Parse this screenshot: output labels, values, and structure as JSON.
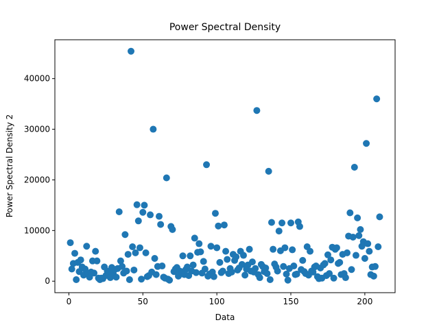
{
  "chart_data": {
    "type": "scatter",
    "title": "Power Spectral Density",
    "xlabel": "Data",
    "ylabel": "Power Spectral Density 2",
    "color": "#1f77b4",
    "x": [
      1,
      2,
      3,
      4,
      5,
      6,
      7,
      8,
      9,
      10,
      11,
      12,
      13,
      14,
      15,
      16,
      17,
      18,
      19,
      20,
      21,
      22,
      23,
      24,
      25,
      26,
      27,
      28,
      29,
      30,
      31,
      32,
      33,
      34,
      35,
      36,
      37,
      38,
      39,
      40,
      41,
      42,
      43,
      44,
      45,
      46,
      47,
      48,
      49,
      50,
      51,
      52,
      53,
      54,
      55,
      56,
      57,
      58,
      59,
      60,
      61,
      62,
      63,
      64,
      65,
      66,
      67,
      68,
      69,
      70,
      71,
      72,
      73,
      74,
      75,
      76,
      77,
      78,
      79,
      80,
      81,
      82,
      83,
      84,
      85,
      86,
      87,
      88,
      89,
      90,
      91,
      92,
      93,
      94,
      95,
      96,
      97,
      98,
      99,
      100,
      101,
      102,
      103,
      104,
      105,
      106,
      107,
      108,
      109,
      110,
      111,
      112,
      113,
      114,
      115,
      116,
      117,
      118,
      119,
      120,
      121,
      122,
      123,
      124,
      125,
      126,
      127,
      128,
      129,
      130,
      131,
      132,
      133,
      134,
      135,
      136,
      137,
      138,
      139,
      140,
      141,
      142,
      143,
      144,
      145,
      146,
      147,
      148,
      149,
      150,
      151,
      152,
      153,
      154,
      155,
      156,
      157,
      158,
      159,
      160,
      161,
      162,
      163,
      164,
      165,
      166,
      167,
      168,
      169,
      170,
      171,
      172,
      173,
      174,
      175,
      176,
      177,
      178,
      179,
      180,
      181,
      182,
      183,
      184,
      185,
      186,
      187,
      188,
      189,
      190,
      191,
      192,
      193,
      194,
      195,
      196,
      197,
      198,
      199,
      200,
      201,
      202,
      203,
      204,
      205,
      206,
      207,
      208,
      209,
      210
    ],
    "values": [
      7600,
      2400,
      3500,
      5500,
      300,
      3700,
      1900,
      4200,
      2800,
      1200,
      2400,
      6900,
      1500,
      800,
      1800,
      4000,
      1600,
      5900,
      4000,
      600,
      300,
      600,
      500,
      2800,
      1100,
      2000,
      1600,
      700,
      2700,
      1500,
      2300,
      800,
      2500,
      13700,
      4000,
      2900,
      1600,
      9200,
      2000,
      5300,
      300,
      45400,
      6800,
      2200,
      5600,
      15100,
      11900,
      6600,
      400,
      13600,
      15000,
      5600,
      900,
      1100,
      13100,
      1800,
      30000,
      4500,
      1300,
      2900,
      12800,
      11200,
      3000,
      800,
      600,
      20400,
      400,
      200,
      10800,
      10200,
      1900,
      2400,
      2700,
      1000,
      2000,
      1500,
      5000,
      1300,
      2300,
      2800,
      1100,
      5000,
      2000,
      3200,
      8500,
      1700,
      5700,
      7400,
      5800,
      1600,
      3900,
      2400,
      23000,
      1000,
      1400,
      6900,
      1800,
      900,
      13400,
      6600,
      10900,
      3700,
      1700,
      2000,
      11100,
      5900,
      4300,
      1500,
      2500,
      1800,
      5300,
      4100,
      4800,
      2200,
      2600,
      5900,
      3300,
      5100,
      1200,
      2400,
      3200,
      6300,
      2000,
      3800,
      1800,
      2500,
      33700,
      1300,
      700,
      3300,
      2900,
      1900,
      2600,
      1500,
      21700,
      300,
      11600,
      6300,
      3400,
      2800,
      2000,
      9900,
      6000,
      11500,
      2900,
      6600,
      1400,
      200,
      2500,
      11500,
      6200,
      3000,
      1300,
      1400,
      11700,
      10800,
      2300,
      4100,
      1900,
      1500,
      6800,
      1200,
      5900,
      2000,
      1800,
      2800,
      3000,
      900,
      500,
      2600,
      600,
      3200,
      3500,
      1100,
      5200,
      1500,
      4200,
      6700,
      600,
      6300,
      6600,
      3500,
      3700,
      1300,
      5300,
      1500,
      700,
      5600,
      8900,
      13500,
      2300,
      8700,
      22500,
      5100,
      12500,
      9000,
      10200,
      6900,
      7800,
      4500,
      27200,
      7400,
      5900,
      1300,
      2800,
      1000,
      2900,
      36000,
      6800,
      12700
    ],
    "xlim": [
      -9.45,
      220.45
    ],
    "ylim": [
      -2270,
      47670
    ],
    "xticks": [
      0,
      50,
      100,
      150,
      200
    ],
    "yticks": [
      0,
      10000,
      20000,
      30000,
      40000
    ]
  }
}
